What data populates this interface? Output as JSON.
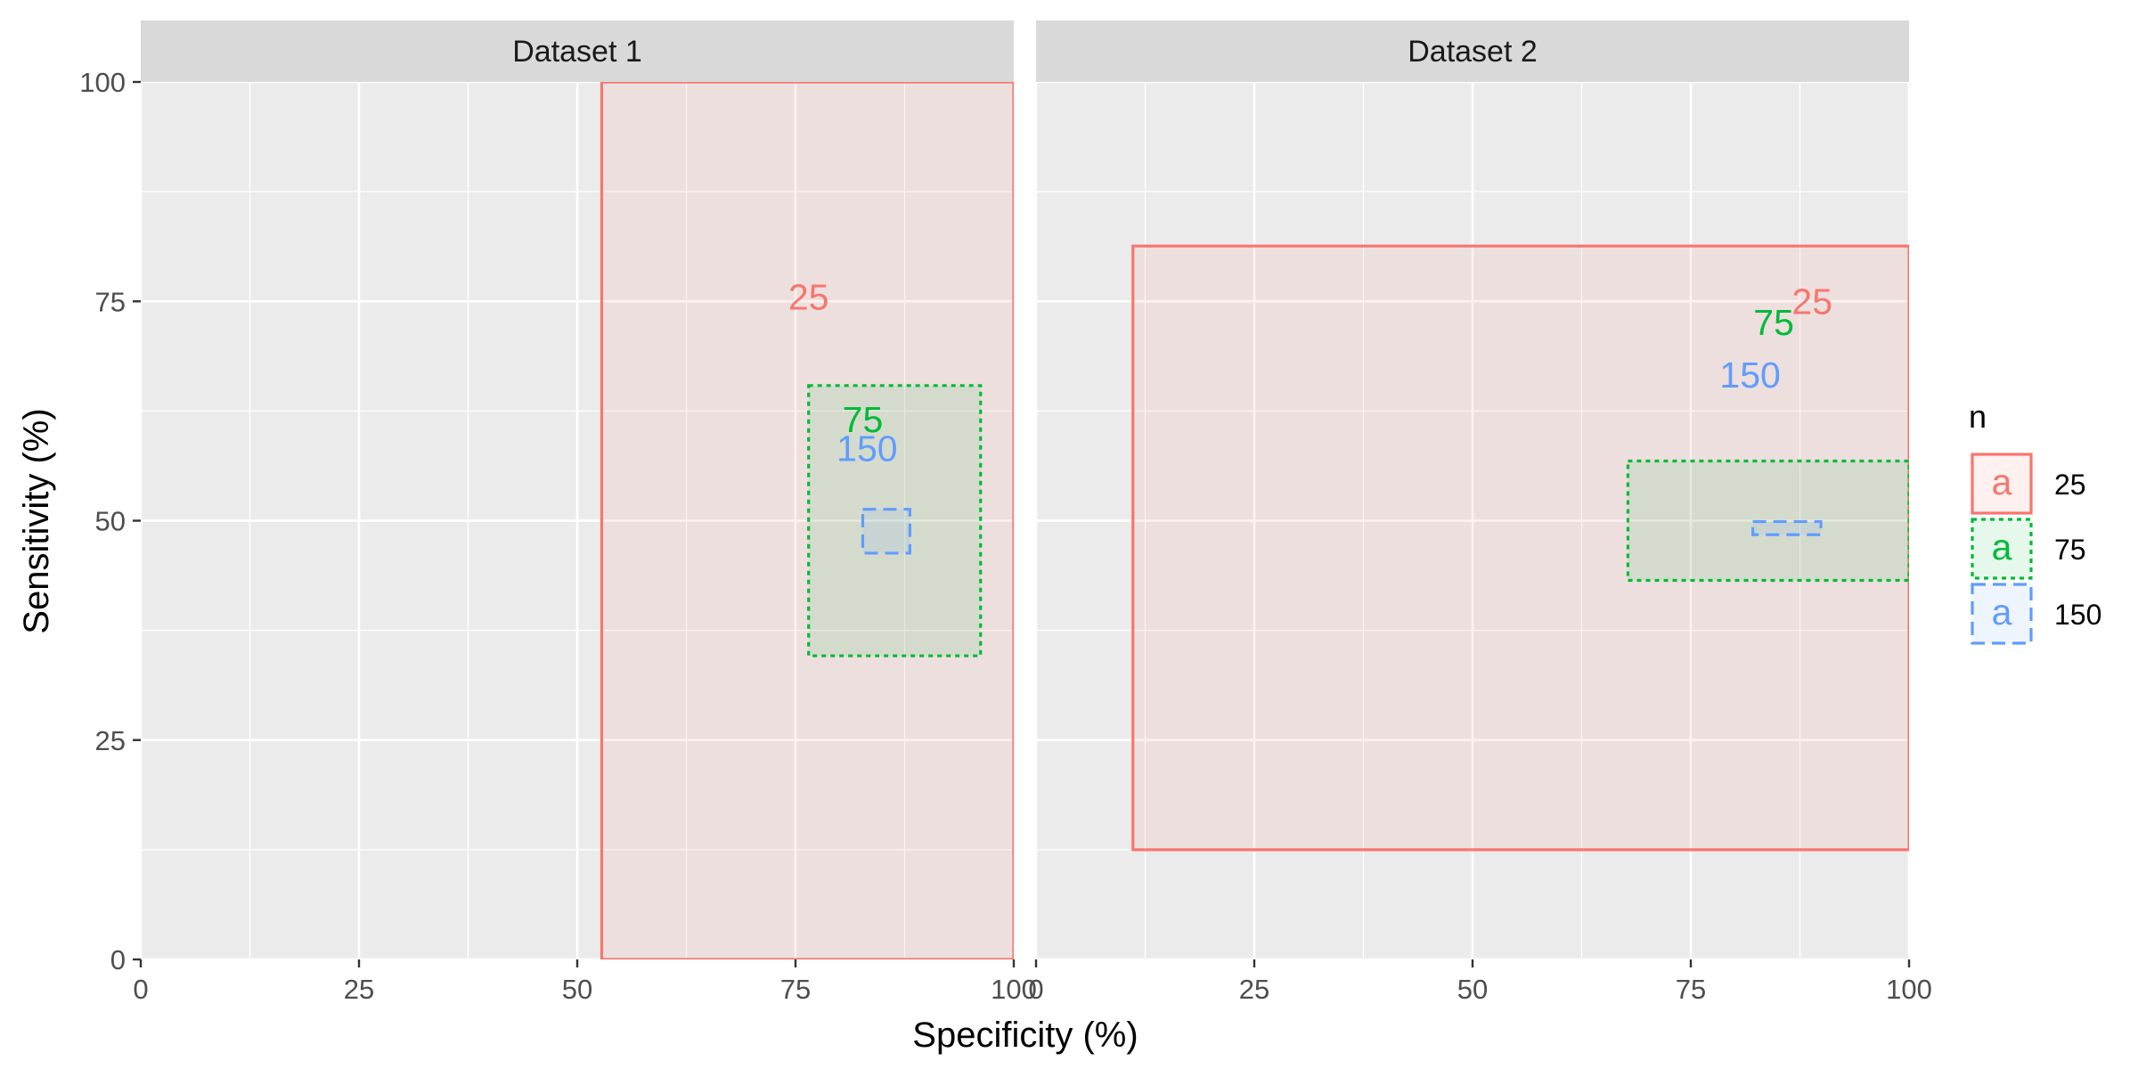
{
  "chart_data": {
    "type": "rect",
    "xlabel": "Specificity (%)",
    "ylabel": "Sensitivity (%)",
    "xlim": [
      0,
      100
    ],
    "ylim": [
      0,
      100
    ],
    "x_ticks": [
      "0",
      "25",
      "50",
      "75",
      "100"
    ],
    "y_ticks": [
      "0",
      "25",
      "50",
      "75",
      "100"
    ],
    "grid": true,
    "legend": {
      "title": "n",
      "position": "right",
      "key_glyph": "a",
      "entries": [
        {
          "label": "25",
          "color": "#F8766D",
          "linetype": "solid"
        },
        {
          "label": "75",
          "color": "#00BA38",
          "linetype": "dotted"
        },
        {
          "label": "150",
          "color": "#619CFF",
          "linetype": "dashed"
        }
      ]
    },
    "panels": [
      {
        "title": "Dataset 1",
        "series": [
          {
            "name": "25",
            "color": "#F8766D",
            "linetype": "solid",
            "spec_range": [
              52.8,
              100
            ],
            "sens_range": [
              0,
              100
            ],
            "label": "25",
            "label_at": [
              76.5,
              75.5
            ]
          },
          {
            "name": "75",
            "color": "#00BA38",
            "linetype": "dotted",
            "spec_range": [
              76.5,
              96.2
            ],
            "sens_range": [
              34.6,
              65.4
            ],
            "label": "75",
            "label_at": [
              82.7,
              61.5
            ]
          },
          {
            "name": "150",
            "color": "#619CFF",
            "linetype": "dashed",
            "spec_range": [
              82.7,
              88.1
            ],
            "sens_range": [
              46.3,
              51.3
            ],
            "label": "150",
            "label_at": [
              83.2,
              58.2
            ]
          }
        ]
      },
      {
        "title": "Dataset 2",
        "series": [
          {
            "name": "25",
            "color": "#F8766D",
            "linetype": "solid",
            "spec_range": [
              11.1,
              100
            ],
            "sens_range": [
              12.5,
              81.3
            ],
            "label": "25",
            "label_at": [
              88.9,
              75.0
            ]
          },
          {
            "name": "75",
            "color": "#00BA38",
            "linetype": "dotted",
            "spec_range": [
              67.8,
              100
            ],
            "sens_range": [
              43.2,
              56.8
            ],
            "label": "75",
            "label_at": [
              84.5,
              72.6
            ]
          },
          {
            "name": "150",
            "color": "#619CFF",
            "linetype": "dashed",
            "spec_range": [
              82.1,
              89.9
            ],
            "sens_range": [
              48.4,
              49.9
            ],
            "label": "150",
            "label_at": [
              81.8,
              66.6
            ]
          }
        ]
      }
    ]
  }
}
